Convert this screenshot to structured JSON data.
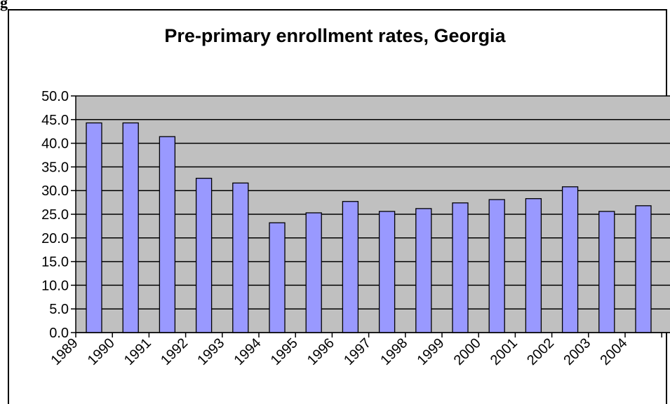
{
  "figure_label": "g",
  "chart_data": {
    "type": "bar",
    "title": "Pre-primary enrollment rates, Georgia",
    "xlabel": "",
    "ylabel": "",
    "categories": [
      "1989",
      "1990",
      "1991",
      "1992",
      "1993",
      "1994",
      "1995",
      "1996",
      "1997",
      "1998",
      "1999",
      "2000",
      "2001",
      "2002",
      "2003",
      "2004"
    ],
    "values": [
      44.3,
      44.3,
      41.4,
      32.6,
      31.6,
      23.2,
      25.3,
      27.7,
      25.6,
      26.2,
      27.4,
      28.1,
      28.3,
      30.8,
      25.6,
      26.8
    ],
    "ylim": [
      0,
      50
    ],
    "ytick_step": 5,
    "ytick_labels": [
      "0.0",
      "5.0",
      "10.0",
      "15.0",
      "20.0",
      "25.0",
      "30.0",
      "35.0",
      "40.0",
      "45.0",
      "50.0"
    ],
    "grid": true,
    "legend": "none",
    "colors": {
      "bar_fill": "#9999ff",
      "bar_stroke": "#000000",
      "plot_background": "#c0c0c0",
      "gridline": "#000000"
    }
  }
}
